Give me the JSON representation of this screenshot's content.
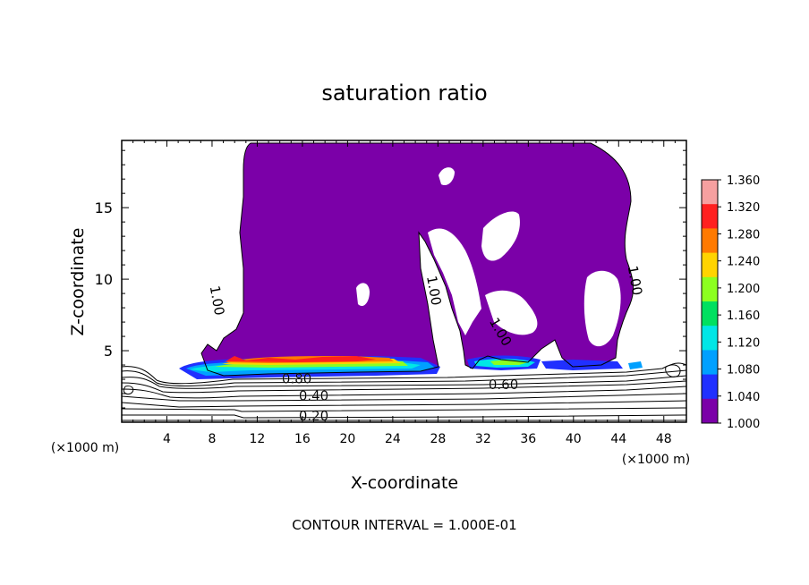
{
  "chart_data": {
    "type": "heatmap",
    "title": "saturation ratio",
    "xlabel": "X-coordinate",
    "ylabel": "Z-coordinate",
    "x_unit": "(×1000 m)",
    "xlim": [
      0,
      50
    ],
    "ylim": [
      0,
      19.7
    ],
    "x_ticks": [
      4,
      8,
      12,
      16,
      20,
      24,
      28,
      32,
      36,
      40,
      44,
      48
    ],
    "y_ticks": [
      5,
      10,
      15
    ],
    "colorbar": {
      "ticks": [
        "1.360",
        "1.320",
        "1.280",
        "1.240",
        "1.200",
        "1.160",
        "1.120",
        "1.080",
        "1.040",
        "1.000"
      ],
      "values": [
        1.36,
        1.32,
        1.28,
        1.24,
        1.2,
        1.16,
        1.12,
        1.08,
        1.04,
        1.0
      ],
      "colors": [
        "#f6a0a0",
        "#ff2020",
        "#ff7a00",
        "#ffd400",
        "#8cff20",
        "#00e060",
        "#00e6e6",
        "#00a0ff",
        "#2030ff",
        "#7b00a8"
      ]
    },
    "contour_labels": [
      {
        "text": "1.00",
        "x": 8.4,
        "z": 8.5
      },
      {
        "text": "1.00",
        "x": 27.6,
        "z": 9.2
      },
      {
        "text": "1.00",
        "x": 33.5,
        "z": 6.3
      },
      {
        "text": "1.00",
        "x": 45.4,
        "z": 9.9
      },
      {
        "text": "0.80",
        "x": 15.5,
        "z": 3.0
      },
      {
        "text": "0.60",
        "x": 33.8,
        "z": 2.6
      },
      {
        "text": "0.40",
        "x": 17.0,
        "z": 1.8
      },
      {
        "text": "0.20",
        "x": 17.0,
        "z": 0.4
      }
    ],
    "contour_interval": "CONTOUR INTERVAL =  1.000E-01"
  },
  "colors": {
    "fill": "#7b00a8",
    "line": "#000000",
    "background": "#ffffff"
  }
}
